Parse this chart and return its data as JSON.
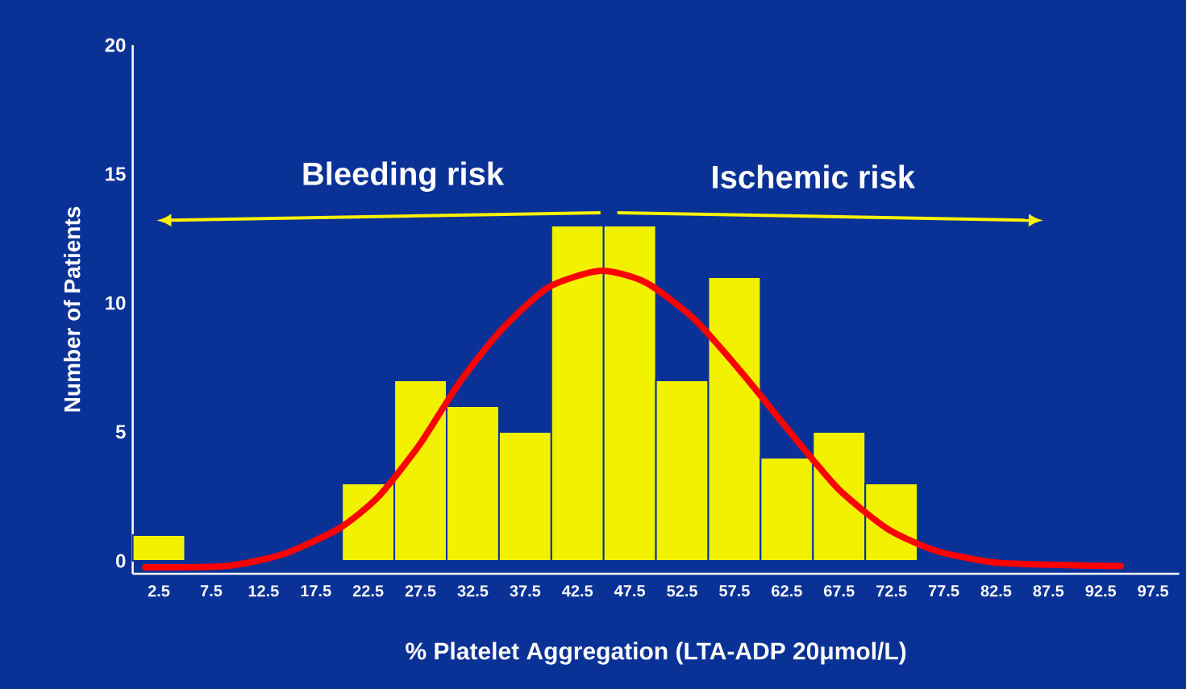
{
  "chart_data": {
    "type": "histogram",
    "xlabel": "% Platelet Aggregation (LTA-ADP 20μmol/L)",
    "ylabel": "Number of Patients",
    "bins": [
      0,
      5,
      10,
      15,
      20,
      25,
      30,
      35,
      40,
      45,
      50,
      55,
      60,
      65,
      70,
      75
    ],
    "values": [
      1,
      0,
      0,
      0,
      3,
      7,
      6,
      5,
      13,
      13,
      7,
      11,
      4,
      5,
      3
    ],
    "color": "#f2f200",
    "xlim": [
      0,
      100
    ],
    "ylim": [
      -0.5,
      20
    ],
    "xticks": [
      2.5,
      7.5,
      12.5,
      17.5,
      22.5,
      27.5,
      32.5,
      37.5,
      42.5,
      47.5,
      52.5,
      57.5,
      62.5,
      67.5,
      72.5,
      77.5,
      82.5,
      87.5,
      92.5,
      97.5
    ],
    "yticks": [
      0,
      5,
      10,
      15,
      20
    ],
    "annotations": [
      "Bleeding risk",
      "Ischemic risk"
    ],
    "series": [
      {
        "type": "line",
        "color": "#ff0000",
        "x": [
          1.2,
          8.9,
          14.3,
          19.7,
          23.5,
          27.4,
          31.2,
          35.1,
          39.7,
          44.7,
          49.0,
          53.6,
          58.2,
          62.8,
          67.4,
          72.1,
          76.7,
          82.1,
          87.5,
          94.4
        ],
        "values": [
          -0.25,
          -0.2,
          0.25,
          1.25,
          2.5,
          4.5,
          6.9,
          8.9,
          10.6,
          11.25,
          10.8,
          9.4,
          7.3,
          5.0,
          2.8,
          1.25,
          0.4,
          -0.05,
          -0.15,
          -0.2
        ]
      }
    ],
    "grid": false
  }
}
